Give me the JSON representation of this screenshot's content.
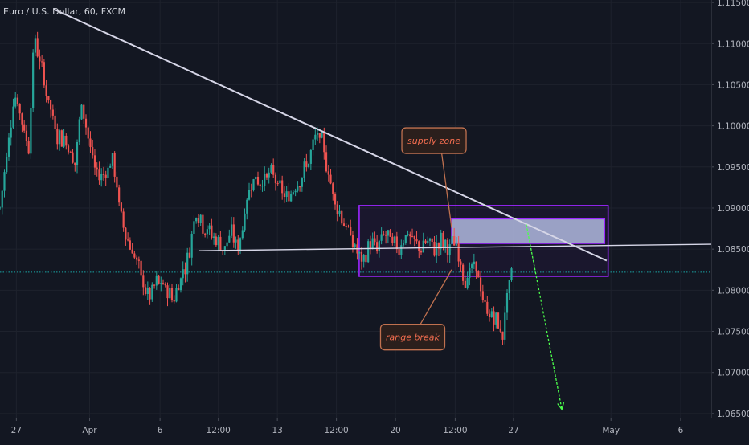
{
  "symbol": {
    "title": "Euro / U.S. Dollar, 60, FXCM"
  },
  "colors": {
    "background": "#131722",
    "grid": "#1e222d",
    "up_candle": "#26a69a",
    "down_candle": "#ef5350",
    "trendline": "#d6d6e7",
    "box_border": "#9c27ff",
    "supply_fill": "#b7c0e6",
    "callout_text": "#f26d4f",
    "callout_border": "#c0714f",
    "projection_arrow": "#4cff4c",
    "dotted_level": "#1aa5a5"
  },
  "chart_data": {
    "type": "candlestick",
    "y_axis": {
      "range": [
        1.0645,
        1.1153
      ],
      "ticks": [
        "1.11500",
        "1.11000",
        "1.10500",
        "1.10000",
        "1.09500",
        "1.09000",
        "1.08500",
        "1.08000",
        "1.07500",
        "1.07000",
        "1.06500"
      ],
      "tick_values": [
        1.115,
        1.11,
        1.105,
        1.1,
        1.095,
        1.09,
        1.085,
        1.08,
        1.075,
        1.07,
        1.065
      ]
    },
    "x_axis": {
      "ticks": [
        "27",
        "Apr",
        "6",
        "12:00",
        "13",
        "12:00",
        "20",
        "12:00",
        "27",
        "May",
        "6"
      ],
      "tick_positions": [
        0.023,
        0.126,
        0.225,
        0.307,
        0.39,
        0.473,
        0.556,
        0.64,
        0.722,
        0.859,
        0.957
      ]
    },
    "grid": true,
    "price_path": [
      [
        0.0,
        1.09
      ],
      [
        0.01,
        1.097
      ],
      [
        0.02,
        1.104
      ],
      [
        0.03,
        1.101
      ],
      [
        0.04,
        1.097
      ],
      [
        0.048,
        1.111
      ],
      [
        0.058,
        1.107
      ],
      [
        0.068,
        1.103
      ],
      [
        0.08,
        1.099
      ],
      [
        0.095,
        1.098
      ],
      [
        0.105,
        1.095
      ],
      [
        0.115,
        1.103
      ],
      [
        0.125,
        1.098
      ],
      [
        0.135,
        1.094
      ],
      [
        0.145,
        1.094
      ],
      [
        0.158,
        1.096
      ],
      [
        0.17,
        1.089
      ],
      [
        0.18,
        1.086
      ],
      [
        0.19,
        1.084
      ],
      [
        0.2,
        1.081
      ],
      [
        0.21,
        1.079
      ],
      [
        0.22,
        1.081
      ],
      [
        0.235,
        1.08
      ],
      [
        0.245,
        1.079
      ],
      [
        0.255,
        1.082
      ],
      [
        0.265,
        1.084
      ],
      [
        0.275,
        1.09
      ],
      [
        0.285,
        1.088
      ],
      [
        0.295,
        1.087
      ],
      [
        0.305,
        1.086
      ],
      [
        0.315,
        1.085
      ],
      [
        0.325,
        1.087
      ],
      [
        0.335,
        1.085
      ],
      [
        0.345,
        1.09
      ],
      [
        0.355,
        1.094
      ],
      [
        0.365,
        1.093
      ],
      [
        0.375,
        1.094
      ],
      [
        0.385,
        1.094
      ],
      [
        0.395,
        1.092
      ],
      [
        0.405,
        1.091
      ],
      [
        0.415,
        1.093
      ],
      [
        0.425,
        1.094
      ],
      [
        0.435,
        1.096
      ],
      [
        0.445,
        1.099
      ],
      [
        0.452,
        1.098
      ],
      [
        0.46,
        1.095
      ],
      [
        0.47,
        1.091
      ],
      [
        0.48,
        1.089
      ],
      [
        0.49,
        1.087
      ],
      [
        0.5,
        1.085
      ],
      [
        0.51,
        1.083
      ],
      [
        0.52,
        1.086
      ],
      [
        0.53,
        1.085
      ],
      [
        0.54,
        1.087
      ],
      [
        0.55,
        1.086
      ],
      [
        0.56,
        1.085
      ],
      [
        0.57,
        1.087
      ],
      [
        0.58,
        1.086
      ],
      [
        0.59,
        1.085
      ],
      [
        0.6,
        1.086
      ],
      [
        0.61,
        1.085
      ],
      [
        0.62,
        1.086
      ],
      [
        0.63,
        1.085
      ],
      [
        0.64,
        1.086
      ],
      [
        0.648,
        1.083
      ],
      [
        0.655,
        1.081
      ],
      [
        0.665,
        1.083
      ],
      [
        0.672,
        1.082
      ],
      [
        0.68,
        1.078
      ],
      [
        0.69,
        1.077
      ],
      [
        0.7,
        1.076
      ],
      [
        0.706,
        1.074
      ],
      [
        0.712,
        1.079
      ],
      [
        0.72,
        1.082
      ]
    ],
    "trendlines": [
      {
        "name": "descending",
        "from": [
          0.075,
          1.1142
        ],
        "to": [
          0.853,
          1.0836
        ]
      },
      {
        "name": "range-midline",
        "from": [
          0.28,
          1.0848
        ],
        "to": [
          1.0,
          1.0856
        ]
      }
    ],
    "range_box": {
      "x": [
        0.505,
        0.855
      ],
      "y": [
        1.0817,
        1.0903
      ]
    },
    "supply_zone": {
      "x": [
        0.635,
        0.85
      ],
      "y": [
        1.0857,
        1.0887
      ]
    },
    "dotted_level": 1.0822,
    "projection_arrow": {
      "from": [
        0.74,
        1.088
      ],
      "to": [
        0.79,
        1.0655
      ]
    },
    "annotations": [
      {
        "text": "supply zone",
        "box": [
          0.565,
          1.0982
        ],
        "pointer": [
          0.635,
          1.0876
        ]
      },
      {
        "text": "range break",
        "box": [
          0.535,
          1.0743
        ],
        "pointer": [
          0.635,
          1.0825
        ]
      }
    ]
  }
}
